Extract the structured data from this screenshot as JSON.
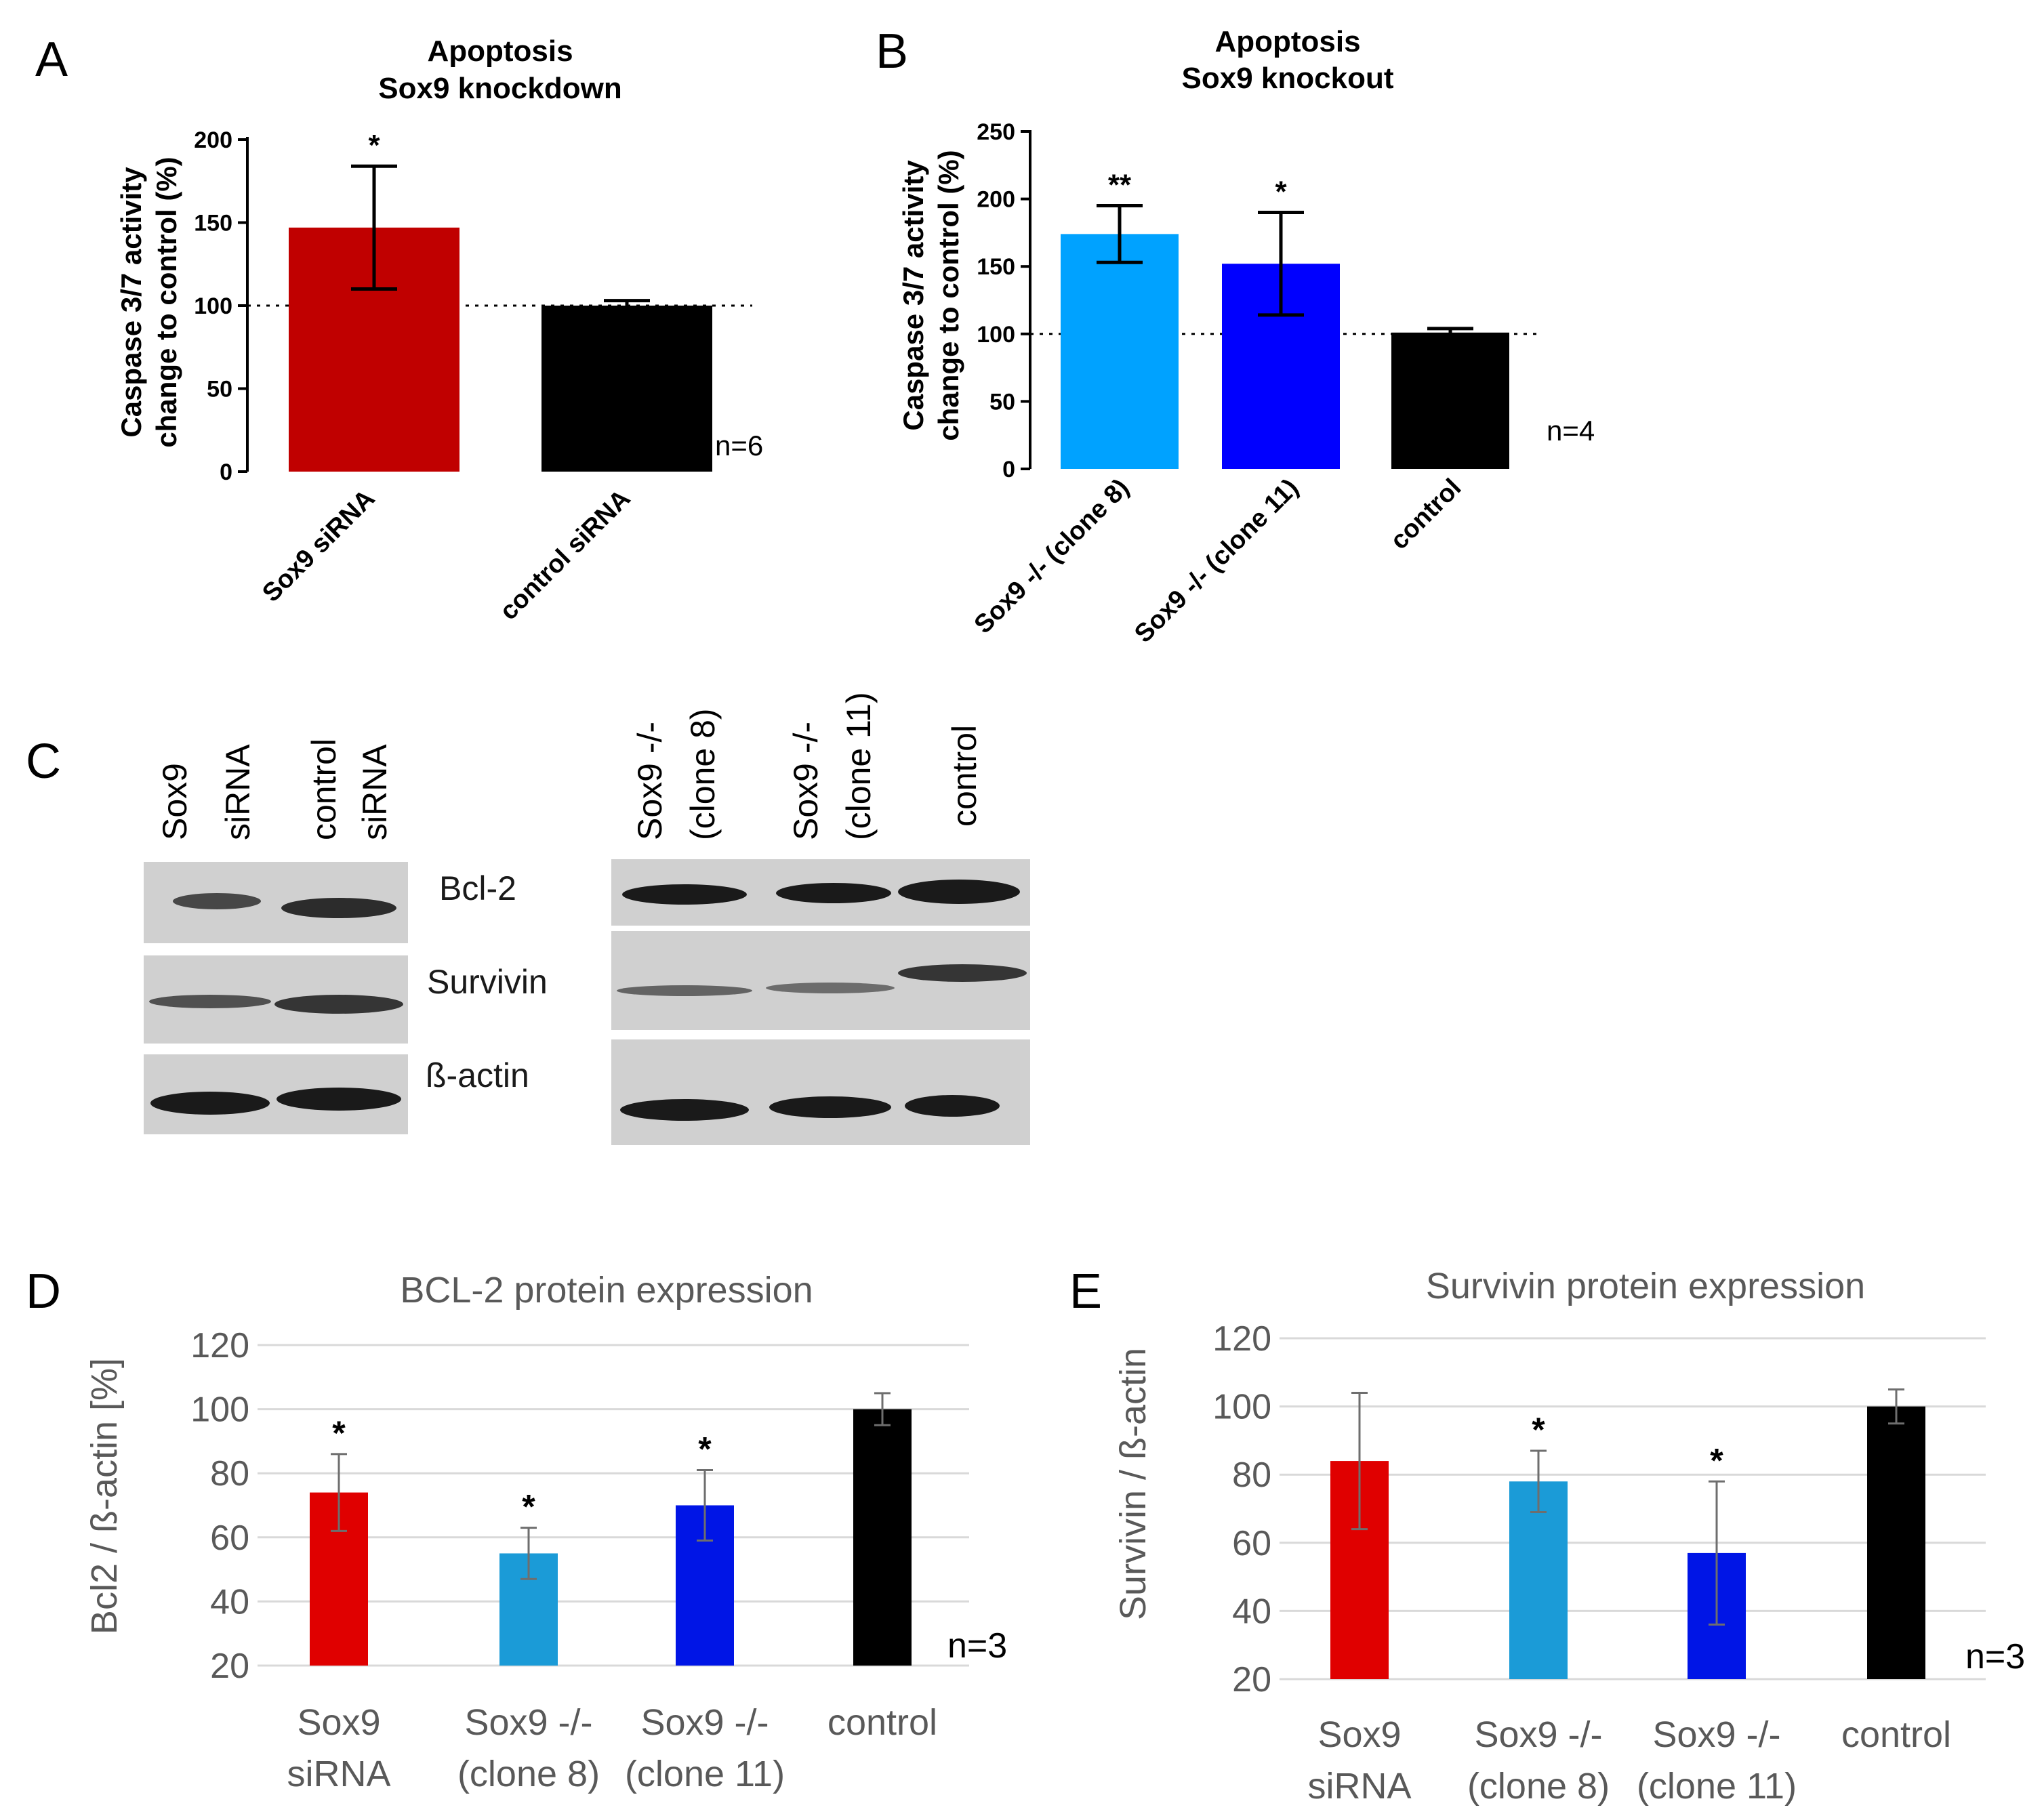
{
  "figure": {
    "panel_letters": [
      "A",
      "B",
      "C",
      "D",
      "E"
    ],
    "blot": {
      "left_lanes": [
        [
          "Sox9",
          "siRNA"
        ],
        [
          "control",
          "siRNA"
        ]
      ],
      "right_lanes": [
        [
          "Sox9 -/-",
          "(clone 8)"
        ],
        [
          "Sox9 -/-",
          "(clone 11)"
        ],
        [
          "control"
        ]
      ],
      "proteins": [
        "Bcl-2",
        "Survivin",
        "ß-actin"
      ]
    }
  },
  "chart_data": [
    {
      "panel": "A",
      "type": "bar",
      "title": [
        "Apoptosis",
        "Sox9 knockdown"
      ],
      "ylabel": [
        "Caspase 3/7 activity",
        "change to control (%)"
      ],
      "categories": [
        "Sox9 siRNA",
        "control siRNA"
      ],
      "values": [
        147,
        100
      ],
      "errors": [
        37,
        3
      ],
      "colors": [
        "#c00000",
        "#000000"
      ],
      "significance": [
        "*",
        ""
      ],
      "ylim": [
        0,
        200
      ],
      "yticks": [
        0,
        50,
        100,
        150,
        200
      ],
      "reference_line": 100,
      "n_label": "n=6"
    },
    {
      "panel": "B",
      "type": "bar",
      "title": [
        "Apoptosis",
        "Sox9 knockout"
      ],
      "ylabel": [
        "Caspase 3/7 activity",
        "change to control (%)"
      ],
      "categories": [
        "Sox9 -/- (clone 8)",
        "Sox9 -/- (clone 11)",
        "control"
      ],
      "values": [
        174,
        152,
        101
      ],
      "errors": [
        21,
        38,
        3
      ],
      "colors": [
        "#00a2ff",
        "#0000ff",
        "#000000"
      ],
      "significance": [
        "**",
        "*",
        ""
      ],
      "ylim": [
        0,
        250
      ],
      "yticks": [
        0,
        50,
        100,
        150,
        200,
        250
      ],
      "reference_line": 100,
      "n_label": "n=4"
    },
    {
      "panel": "D",
      "type": "bar",
      "title": "BCL-2 protein expression",
      "ylabel": "Bcl2 / ß-actin [%]",
      "categories": [
        [
          "Sox9",
          "siRNA"
        ],
        [
          "Sox9 -/-",
          "(clone 8)"
        ],
        [
          "Sox9 -/-",
          "(clone 11)"
        ],
        [
          "control"
        ]
      ],
      "values": [
        74,
        55,
        70,
        100
      ],
      "errors": [
        12,
        8,
        11,
        5
      ],
      "colors": [
        "#e00000",
        "#1b9bd7",
        "#0015e6",
        "#000000"
      ],
      "significance": [
        "*",
        "*",
        "*",
        ""
      ],
      "ylim": [
        20,
        120
      ],
      "yticks": [
        20,
        40,
        60,
        80,
        100,
        120
      ],
      "n_label": "n=3"
    },
    {
      "panel": "E",
      "type": "bar",
      "title": "Survivin protein expression",
      "ylabel": "Survivin / ß-actin",
      "categories": [
        [
          "Sox9",
          "siRNA"
        ],
        [
          "Sox9 -/-",
          "(clone 8)"
        ],
        [
          "Sox9 -/-",
          "(clone 11)"
        ],
        [
          "control"
        ]
      ],
      "values": [
        84,
        78,
        57,
        100
      ],
      "errors": [
        20,
        9,
        21,
        5
      ],
      "colors": [
        "#e00000",
        "#1b9bd7",
        "#0015e6",
        "#000000"
      ],
      "significance": [
        "",
        "*",
        "*",
        ""
      ],
      "ylim": [
        20,
        120
      ],
      "yticks": [
        20,
        40,
        60,
        80,
        100,
        120
      ],
      "n_label": "n=3"
    }
  ]
}
